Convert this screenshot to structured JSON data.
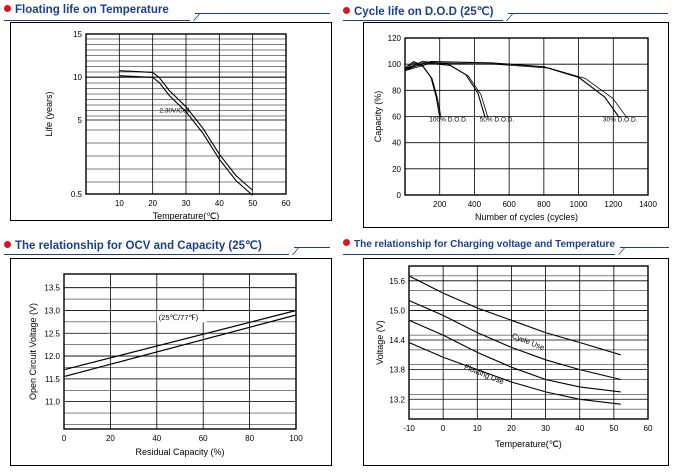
{
  "panels": {
    "floating": {
      "title": "Floating life on Temperature",
      "xlabel": "Temperature(℃)",
      "ylabel": "Life (years)"
    },
    "cycle": {
      "title": "Cycle life on D.O.D (25℃)",
      "xlabel": "Number of cycles (cycles)",
      "ylabel": "Capacity (%)"
    },
    "ocv": {
      "title": "The relationship for OCV and Capacity (25℃)",
      "xlabel": "Residual Capacity (%)",
      "ylabel": "Open Circuit Voltage (V)"
    },
    "charging": {
      "title": "The relationship for Charging voltage and Temperature",
      "xlabel": "Temperature(℃)",
      "ylabel": "Voltage (V)"
    }
  },
  "chart_data": [
    {
      "type": "line",
      "title": "Floating life on Temperature",
      "xlabel": "Temperature(℃)",
      "ylabel": "Life (years)",
      "xticks": [
        10,
        20,
        30,
        40,
        50,
        60
      ],
      "yticks": [
        0.5,
        5,
        10,
        15
      ],
      "xlim": [
        0,
        60
      ],
      "series": [
        {
          "name": "2.30V/Cell",
          "x": [
            10,
            20,
            22,
            25,
            30,
            35,
            40,
            45,
            50
          ],
          "y": [
            10.5,
            10.3,
            9.7,
            8.2,
            6.3,
            4.4,
            2.8,
            1.5,
            0.6
          ]
        }
      ]
    },
    {
      "type": "line",
      "title": "Cycle life on D.O.D (25℃)",
      "xlabel": "Number of cycles (cycles)",
      "ylabel": "Capacity (%)",
      "xticks": [
        200,
        400,
        600,
        800,
        1000,
        1200,
        1400
      ],
      "yticks": [
        0,
        20,
        40,
        60,
        80,
        100,
        120
      ],
      "xlim": [
        0,
        1400
      ],
      "ylim": [
        0,
        120
      ],
      "series": [
        {
          "name": "100% D.O.D.",
          "x": [
            0,
            50,
            100,
            150,
            180,
            200
          ],
          "y": [
            97,
            102,
            99,
            90,
            75,
            60
          ]
        },
        {
          "name": "50% D.O.D.",
          "x": [
            0,
            100,
            250,
            350,
            420,
            460
          ],
          "y": [
            96,
            102,
            100,
            92,
            78,
            60
          ]
        },
        {
          "name": "30% D.O.D.",
          "x": [
            0,
            150,
            500,
            800,
            1000,
            1150,
            1230
          ],
          "y": [
            96,
            102,
            101,
            98,
            90,
            75,
            60
          ]
        }
      ]
    },
    {
      "type": "line",
      "title": "The relationship for OCV and Capacity (25℃)",
      "xlabel": "Residual Capacity (%)",
      "ylabel": "Open Circuit Voltage (V)",
      "annotation": "(25℃/77℉)",
      "xticks": [
        0,
        20,
        40,
        60,
        80,
        100
      ],
      "yticks": [
        11.0,
        11.5,
        12.0,
        12.5,
        13.0,
        13.5
      ],
      "xlim": [
        0,
        100
      ],
      "ylim": [
        10.4,
        13.8
      ],
      "series": [
        {
          "x": [
            0,
            100
          ],
          "y": [
            11.7,
            13.0
          ]
        },
        {
          "x": [
            0,
            100
          ],
          "y": [
            11.55,
            12.9
          ]
        }
      ]
    },
    {
      "type": "line",
      "title": "The relationship for Charging voltage and Temperature",
      "xlabel": "Temperature(℃)",
      "ylabel": "Voltage (V)",
      "xticks": [
        -10,
        0,
        10,
        20,
        30,
        40,
        50,
        60
      ],
      "yticks": [
        13.2,
        13.8,
        14.4,
        15.0,
        15.6
      ],
      "xlim": [
        -10,
        60
      ],
      "ylim": [
        12.8,
        15.9
      ],
      "bands": [
        {
          "name": "Cycle Use",
          "upper": {
            "x": [
              -10,
              0,
              10,
              20,
              30,
              40,
              52
            ],
            "y": [
              15.7,
              15.35,
              15.05,
              14.8,
              14.55,
              14.35,
              14.1
            ]
          },
          "lower": {
            "x": [
              -10,
              0,
              10,
              20,
              30,
              40,
              52
            ],
            "y": [
              15.2,
              14.9,
              14.55,
              14.25,
              14.0,
              13.8,
              13.6
            ]
          }
        },
        {
          "name": "Floating Use",
          "upper": {
            "x": [
              -10,
              0,
              10,
              20,
              30,
              40,
              52
            ],
            "y": [
              14.8,
              14.5,
              14.15,
              13.85,
              13.6,
              13.45,
              13.35
            ]
          },
          "lower": {
            "x": [
              -10,
              0,
              10,
              20,
              30,
              40,
              52
            ],
            "y": [
              14.35,
              14.05,
              13.8,
              13.55,
              13.35,
              13.2,
              13.1
            ]
          }
        }
      ]
    }
  ]
}
